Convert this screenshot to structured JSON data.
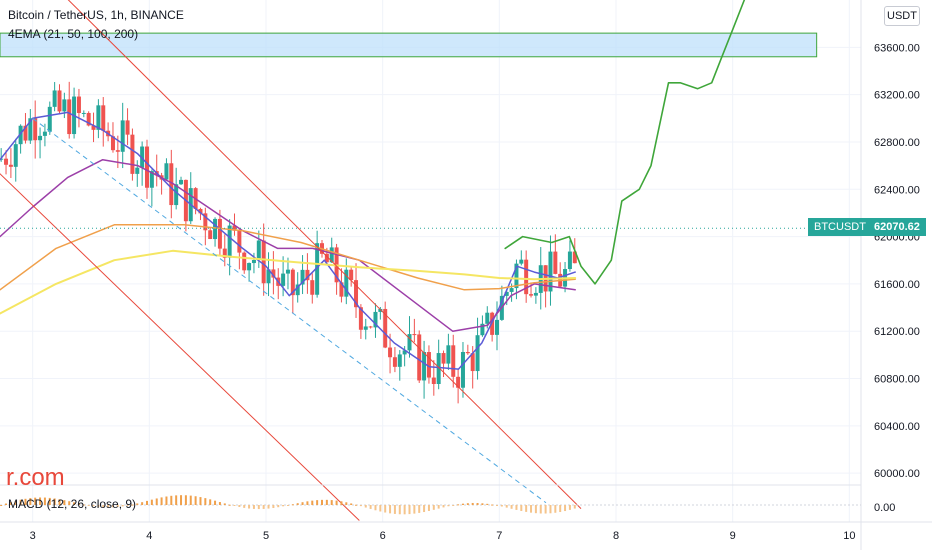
{
  "header": {
    "title": "Bitcoin / TetherUS, 1h, BINANCE",
    "ema_label": "4EMA (21, 50, 100, 200)",
    "currency": "USDT"
  },
  "macd": {
    "label": "MACD (12, 26, close, 9)"
  },
  "watermark": "r.com",
  "last_price": {
    "symbol": "BTCUSDT",
    "value": "62070.62"
  },
  "colors": {
    "up": "#26a69a",
    "down": "#ef5350",
    "channel": "#e8483b",
    "ema21": "#5b5bd6",
    "ema50": "#9c3fa8",
    "ema100": "#f0a04b",
    "ema200": "#f5e663",
    "projection": "#3fa63a",
    "zone_fill": "#bbdefb",
    "zone_border": "#3fa63a",
    "trendline": "#4fa8e0"
  },
  "chart_data": {
    "type": "line",
    "title": "Bitcoin / TetherUS, 1h, BINANCE",
    "x_ticks": [
      "3",
      "4",
      "5",
      "6",
      "7",
      "8",
      "9",
      "10"
    ],
    "y_ticks": [
      "60000.00",
      "60400.00",
      "60800.00",
      "61200.00",
      "61600.00",
      "62000.00",
      "62400.00",
      "62800.00",
      "63200.00",
      "63600.00"
    ],
    "macd_tick": "0.00",
    "ylim": [
      59900,
      64000
    ],
    "xlim": [
      2.72,
      10.1
    ],
    "resistance_zone": [
      63520,
      63720
    ],
    "channel": {
      "upper": [
        [
          3.0,
          64300
        ],
        [
          7.7,
          59700
        ]
      ],
      "lower": [
        [
          2.7,
          62550
        ],
        [
          5.8,
          59600
        ]
      ]
    },
    "inner_trend": [
      [
        3.0,
        63000
      ],
      [
        7.4,
        59750
      ]
    ],
    "series": [
      {
        "name": "EMA 21",
        "points": [
          [
            2.72,
            62650
          ],
          [
            3.0,
            63000
          ],
          [
            3.3,
            63050
          ],
          [
            3.6,
            62900
          ],
          [
            3.9,
            62700
          ],
          [
            4.2,
            62400
          ],
          [
            4.5,
            62150
          ],
          [
            4.8,
            61900
          ],
          [
            5.0,
            61750
          ],
          [
            5.2,
            61500
          ],
          [
            5.5,
            61800
          ],
          [
            5.8,
            61400
          ],
          [
            6.1,
            61100
          ],
          [
            6.4,
            60900
          ],
          [
            6.65,
            60880
          ],
          [
            6.85,
            61100
          ],
          [
            7.0,
            61400
          ],
          [
            7.15,
            61750
          ],
          [
            7.3,
            61700
          ],
          [
            7.5,
            61650
          ],
          [
            7.65,
            61700
          ]
        ]
      },
      {
        "name": "EMA 50",
        "points": [
          [
            2.72,
            62000
          ],
          [
            3.0,
            62250
          ],
          [
            3.3,
            62500
          ],
          [
            3.6,
            62650
          ],
          [
            3.9,
            62600
          ],
          [
            4.2,
            62450
          ],
          [
            4.5,
            62250
          ],
          [
            4.8,
            62050
          ],
          [
            5.1,
            61900
          ],
          [
            5.4,
            61900
          ],
          [
            5.8,
            61800
          ],
          [
            6.2,
            61500
          ],
          [
            6.6,
            61200
          ],
          [
            6.9,
            61250
          ],
          [
            7.1,
            61500
          ],
          [
            7.3,
            61600
          ],
          [
            7.65,
            61550
          ]
        ]
      },
      {
        "name": "EMA 100",
        "points": [
          [
            2.72,
            61550
          ],
          [
            3.2,
            61900
          ],
          [
            3.7,
            62100
          ],
          [
            4.3,
            62100
          ],
          [
            4.8,
            62050
          ],
          [
            5.3,
            61950
          ],
          [
            5.8,
            61800
          ],
          [
            6.3,
            61650
          ],
          [
            6.7,
            61550
          ],
          [
            7.0,
            61560
          ],
          [
            7.3,
            61610
          ],
          [
            7.65,
            61640
          ]
        ]
      },
      {
        "name": "EMA 200",
        "points": [
          [
            2.72,
            61350
          ],
          [
            3.2,
            61600
          ],
          [
            3.7,
            61800
          ],
          [
            4.2,
            61880
          ],
          [
            4.7,
            61830
          ],
          [
            5.3,
            61780
          ],
          [
            5.8,
            61740
          ],
          [
            6.3,
            61710
          ],
          [
            6.7,
            61680
          ],
          [
            7.0,
            61650
          ],
          [
            7.3,
            61640
          ],
          [
            7.65,
            61650
          ]
        ]
      },
      {
        "name": "Projection",
        "points": [
          [
            7.05,
            61900
          ],
          [
            7.2,
            62000
          ],
          [
            7.45,
            61950
          ],
          [
            7.6,
            62000
          ],
          [
            7.7,
            61750
          ],
          [
            7.82,
            61600
          ],
          [
            7.96,
            61800
          ],
          [
            8.05,
            62300
          ],
          [
            8.2,
            62400
          ],
          [
            8.3,
            62600
          ],
          [
            8.45,
            63300
          ],
          [
            8.55,
            63300
          ],
          [
            8.7,
            63250
          ],
          [
            8.82,
            63300
          ],
          [
            8.9,
            63500
          ],
          [
            9.0,
            63750
          ],
          [
            9.1,
            64000
          ]
        ]
      }
    ],
    "macd_histogram_range": [
      -30,
      50
    ]
  }
}
